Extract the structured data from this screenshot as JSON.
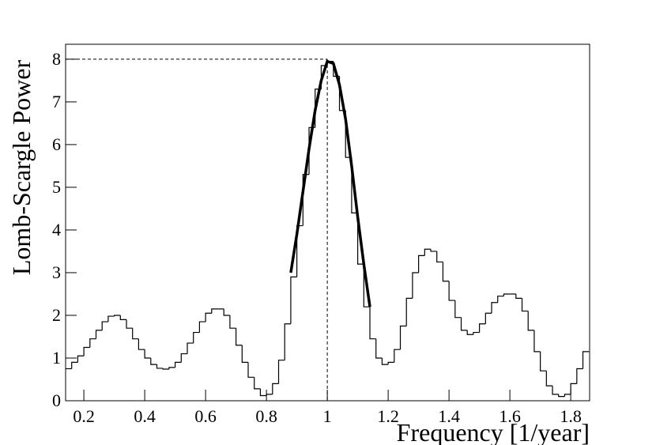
{
  "chart_data": {
    "type": "histogram",
    "x_label": "Frequency [1/year]",
    "y_label": "Lomb-Scargle Power",
    "xlim": [
      0.14,
      1.862
    ],
    "ylim": [
      0,
      8.35
    ],
    "xticks": [
      0.2,
      0.4,
      0.6,
      0.8,
      1,
      1.2,
      1.4,
      1.6,
      1.8
    ],
    "yticks": [
      0,
      1,
      2,
      3,
      4,
      5,
      6,
      7,
      8
    ],
    "color": "#000000",
    "bins": [
      0.14,
      0.16,
      0.18,
      0.2,
      0.22,
      0.24,
      0.26,
      0.28,
      0.3,
      0.32,
      0.34,
      0.36,
      0.38,
      0.4,
      0.42,
      0.44,
      0.46,
      0.48,
      0.5,
      0.52,
      0.54,
      0.56,
      0.58,
      0.6,
      0.62,
      0.64,
      0.66,
      0.68,
      0.7,
      0.72,
      0.74,
      0.76,
      0.78,
      0.8,
      0.82,
      0.84,
      0.86,
      0.88,
      0.9,
      0.92,
      0.94,
      0.96,
      0.98,
      1.0,
      1.02,
      1.04,
      1.06,
      1.08,
      1.1,
      1.12,
      1.14,
      1.16,
      1.18,
      1.2,
      1.22,
      1.24,
      1.26,
      1.28,
      1.3,
      1.32,
      1.34,
      1.36,
      1.38,
      1.4,
      1.42,
      1.44,
      1.46,
      1.48,
      1.5,
      1.52,
      1.54,
      1.56,
      1.58,
      1.6,
      1.62,
      1.64,
      1.66,
      1.68,
      1.7,
      1.72,
      1.74,
      1.76,
      1.78,
      1.8,
      1.82,
      1.84,
      1.86
    ],
    "values": [
      0.75,
      0.9,
      1.05,
      1.25,
      1.45,
      1.65,
      1.85,
      1.98,
      2.0,
      1.9,
      1.7,
      1.45,
      1.2,
      1.0,
      0.85,
      0.76,
      0.74,
      0.78,
      0.9,
      1.1,
      1.35,
      1.6,
      1.85,
      2.05,
      2.15,
      2.15,
      2.0,
      1.7,
      1.3,
      0.9,
      0.55,
      0.28,
      0.12,
      0.15,
      0.4,
      0.95,
      1.8,
      2.9,
      4.1,
      5.3,
      6.4,
      7.3,
      7.85,
      7.95,
      7.6,
      6.8,
      5.7,
      4.4,
      3.2,
      2.2,
      1.45,
      1.0,
      0.85,
      0.9,
      1.2,
      1.75,
      2.4,
      3.0,
      3.4,
      3.55,
      3.5,
      3.25,
      2.8,
      2.35,
      1.95,
      1.65,
      1.55,
      1.6,
      1.8,
      2.05,
      2.3,
      2.45,
      2.5,
      2.5,
      2.4,
      2.1,
      1.65,
      1.15,
      0.7,
      0.35,
      0.15,
      0.1,
      0.15,
      0.4,
      0.75,
      1.15
    ],
    "fit": {
      "type": "line",
      "color": "#000000",
      "x": [
        0.88,
        0.9,
        0.92,
        0.94,
        0.96,
        0.98,
        1.0,
        1.02,
        1.04,
        1.06,
        1.08,
        1.1,
        1.12,
        1.14
      ],
      "values": [
        3.0,
        3.9,
        4.9,
        5.9,
        6.8,
        7.5,
        7.95,
        7.9,
        7.4,
        6.6,
        5.5,
        4.3,
        3.2,
        2.2
      ]
    },
    "peak": {
      "x": 1.0,
      "y": 8
    }
  }
}
